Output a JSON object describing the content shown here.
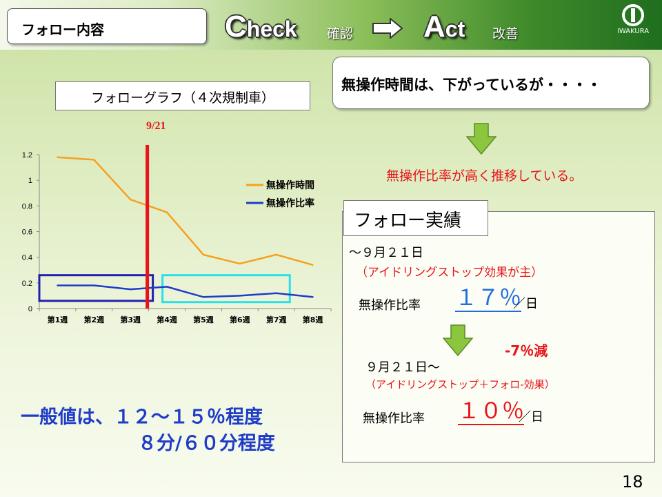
{
  "header": {
    "section_label": "フォロー内容",
    "check_cap": "C",
    "check_rest": "heck",
    "check_jp": "確認",
    "act_cap": "A",
    "act_rest": "ct",
    "act_jp": "改善",
    "logo_text": "IWAKURA"
  },
  "graph_title": "フォローグラフ（４次規制車）",
  "chart_marker_label": "9/21",
  "chart_data": {
    "type": "line",
    "categories": [
      "第1週",
      "第2週",
      "第3週",
      "第4週",
      "第5週",
      "第6週",
      "第7週",
      "第8週"
    ],
    "series": [
      {
        "name": "無操作時間",
        "color": "#f7a020",
        "values": [
          1.18,
          1.16,
          0.85,
          0.75,
          0.42,
          0.35,
          0.42,
          0.34
        ]
      },
      {
        "name": "無操作比率",
        "color": "#1e3cc8",
        "values": [
          0.18,
          0.18,
          0.15,
          0.17,
          0.09,
          0.1,
          0.12,
          0.09
        ]
      }
    ],
    "yticks": [
      "0",
      "0.2",
      "0.4",
      "0.6",
      "0.8",
      "1",
      "1.2"
    ],
    "ylim": [
      0,
      1.2
    ],
    "legend": "right",
    "marker_after_category": "第4週"
  },
  "top_note": "無操作時間は、下がっているが・・・・",
  "trend_note": "無操作比率が高く推移している。",
  "result": {
    "tab_label": "フォロー実績",
    "before_date": "～９月２１日",
    "before_effect": "（アイドリングストップ効果が主）",
    "before_label": "無操作比率",
    "before_value": "１７％",
    "before_unit": "／日",
    "change": "-7％減",
    "after_date": "９月２１日～",
    "after_effect": "（アイドリングストップ＋フォロ-効果）",
    "after_label": "無操作比率",
    "after_value": "１０％",
    "after_unit": "／日"
  },
  "general_line1": "一般値は、１２～１５％程度",
  "general_line2": "８分/６０分程度",
  "page_number": "18",
  "colors": {
    "accent_green": "#3f8a2a",
    "arrow_green": "#8cc63f",
    "red": "#e8141a",
    "blue": "#1e3cc8",
    "orange": "#f7a020",
    "cyan": "#29e0e8"
  }
}
